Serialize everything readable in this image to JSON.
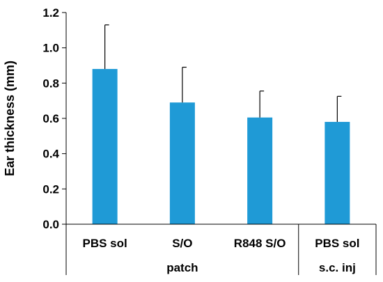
{
  "chart_data": {
    "type": "bar",
    "title": "",
    "xlabel": "",
    "ylabel": "Ear thickness (mm)",
    "ylim": [
      0,
      1.2
    ],
    "yticks": [
      "0.0",
      "0.2",
      "0.4",
      "0.6",
      "0.8",
      "1.0",
      "1.2"
    ],
    "grid": false,
    "bar_color": "#1f9ad6",
    "categories": [
      "PBS sol",
      "S/O",
      "R848 S/O",
      "PBS sol"
    ],
    "values": [
      0.88,
      0.69,
      0.605,
      0.58
    ],
    "error_plus": [
      0.25,
      0.2,
      0.15,
      0.145
    ],
    "groups": [
      {
        "label": "patch",
        "span": [
          0,
          2
        ]
      },
      {
        "label": "s.c. inj",
        "span": [
          3,
          3
        ]
      }
    ]
  }
}
